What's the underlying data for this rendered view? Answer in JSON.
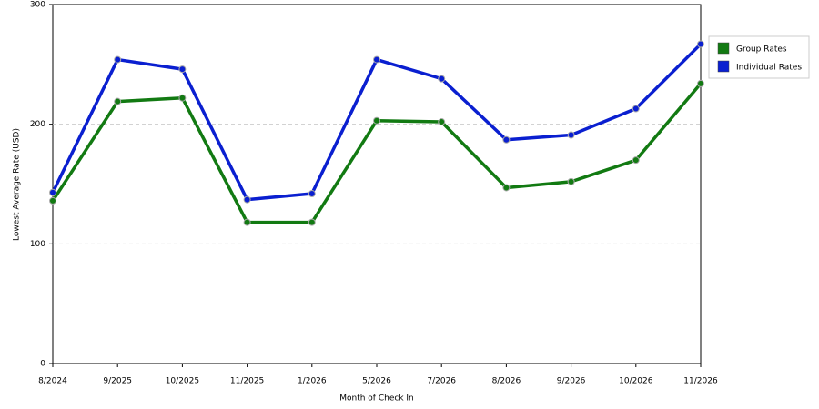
{
  "chart_data": {
    "type": "line",
    "x_label": "Month of Check In",
    "y_label": "Lowest Average Rate (USD)",
    "categories": [
      "8/2024",
      "9/2025",
      "10/2025",
      "11/2025",
      "1/2026",
      "5/2026",
      "7/2026",
      "8/2026",
      "9/2026",
      "10/2026",
      "11/2026"
    ],
    "series": [
      {
        "name": "Group Rates",
        "color": "#127a12",
        "values": [
          136,
          219,
          222,
          118,
          118,
          203,
          202,
          147,
          152,
          170,
          234
        ]
      },
      {
        "name": "Individual Rates",
        "color": "#0a1fd0",
        "values": [
          143,
          254,
          246,
          137,
          142,
          254,
          238,
          187,
          191,
          213,
          267
        ]
      }
    ],
    "ylim": [
      0,
      300
    ],
    "yticks": [
      0,
      100,
      200,
      300
    ],
    "grid": true,
    "legend": "right"
  }
}
